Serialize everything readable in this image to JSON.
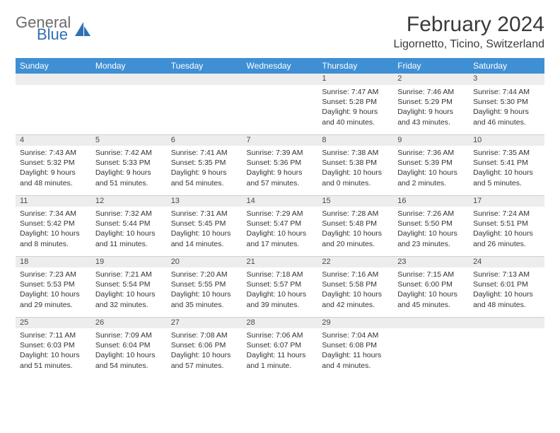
{
  "brand": {
    "line1": "General",
    "line2": "Blue"
  },
  "title": "February 2024",
  "location": "Ligornetto, Ticino, Switzerland",
  "colors": {
    "header_bg": "#3f8fd4",
    "header_text": "#ffffff",
    "daynum_bg": "#ededed",
    "logo_blue": "#2f6fb5",
    "logo_gray": "#6a6a6a",
    "text": "#333333"
  },
  "weekdays": [
    "Sunday",
    "Monday",
    "Tuesday",
    "Wednesday",
    "Thursday",
    "Friday",
    "Saturday"
  ],
  "weeks": [
    [
      null,
      null,
      null,
      null,
      {
        "d": "1",
        "sr": "Sunrise: 7:47 AM",
        "ss": "Sunset: 5:28 PM",
        "dl": "Daylight: 9 hours and 40 minutes."
      },
      {
        "d": "2",
        "sr": "Sunrise: 7:46 AM",
        "ss": "Sunset: 5:29 PM",
        "dl": "Daylight: 9 hours and 43 minutes."
      },
      {
        "d": "3",
        "sr": "Sunrise: 7:44 AM",
        "ss": "Sunset: 5:30 PM",
        "dl": "Daylight: 9 hours and 46 minutes."
      }
    ],
    [
      {
        "d": "4",
        "sr": "Sunrise: 7:43 AM",
        "ss": "Sunset: 5:32 PM",
        "dl": "Daylight: 9 hours and 48 minutes."
      },
      {
        "d": "5",
        "sr": "Sunrise: 7:42 AM",
        "ss": "Sunset: 5:33 PM",
        "dl": "Daylight: 9 hours and 51 minutes."
      },
      {
        "d": "6",
        "sr": "Sunrise: 7:41 AM",
        "ss": "Sunset: 5:35 PM",
        "dl": "Daylight: 9 hours and 54 minutes."
      },
      {
        "d": "7",
        "sr": "Sunrise: 7:39 AM",
        "ss": "Sunset: 5:36 PM",
        "dl": "Daylight: 9 hours and 57 minutes."
      },
      {
        "d": "8",
        "sr": "Sunrise: 7:38 AM",
        "ss": "Sunset: 5:38 PM",
        "dl": "Daylight: 10 hours and 0 minutes."
      },
      {
        "d": "9",
        "sr": "Sunrise: 7:36 AM",
        "ss": "Sunset: 5:39 PM",
        "dl": "Daylight: 10 hours and 2 minutes."
      },
      {
        "d": "10",
        "sr": "Sunrise: 7:35 AM",
        "ss": "Sunset: 5:41 PM",
        "dl": "Daylight: 10 hours and 5 minutes."
      }
    ],
    [
      {
        "d": "11",
        "sr": "Sunrise: 7:34 AM",
        "ss": "Sunset: 5:42 PM",
        "dl": "Daylight: 10 hours and 8 minutes."
      },
      {
        "d": "12",
        "sr": "Sunrise: 7:32 AM",
        "ss": "Sunset: 5:44 PM",
        "dl": "Daylight: 10 hours and 11 minutes."
      },
      {
        "d": "13",
        "sr": "Sunrise: 7:31 AM",
        "ss": "Sunset: 5:45 PM",
        "dl": "Daylight: 10 hours and 14 minutes."
      },
      {
        "d": "14",
        "sr": "Sunrise: 7:29 AM",
        "ss": "Sunset: 5:47 PM",
        "dl": "Daylight: 10 hours and 17 minutes."
      },
      {
        "d": "15",
        "sr": "Sunrise: 7:28 AM",
        "ss": "Sunset: 5:48 PM",
        "dl": "Daylight: 10 hours and 20 minutes."
      },
      {
        "d": "16",
        "sr": "Sunrise: 7:26 AM",
        "ss": "Sunset: 5:50 PM",
        "dl": "Daylight: 10 hours and 23 minutes."
      },
      {
        "d": "17",
        "sr": "Sunrise: 7:24 AM",
        "ss": "Sunset: 5:51 PM",
        "dl": "Daylight: 10 hours and 26 minutes."
      }
    ],
    [
      {
        "d": "18",
        "sr": "Sunrise: 7:23 AM",
        "ss": "Sunset: 5:53 PM",
        "dl": "Daylight: 10 hours and 29 minutes."
      },
      {
        "d": "19",
        "sr": "Sunrise: 7:21 AM",
        "ss": "Sunset: 5:54 PM",
        "dl": "Daylight: 10 hours and 32 minutes."
      },
      {
        "d": "20",
        "sr": "Sunrise: 7:20 AM",
        "ss": "Sunset: 5:55 PM",
        "dl": "Daylight: 10 hours and 35 minutes."
      },
      {
        "d": "21",
        "sr": "Sunrise: 7:18 AM",
        "ss": "Sunset: 5:57 PM",
        "dl": "Daylight: 10 hours and 39 minutes."
      },
      {
        "d": "22",
        "sr": "Sunrise: 7:16 AM",
        "ss": "Sunset: 5:58 PM",
        "dl": "Daylight: 10 hours and 42 minutes."
      },
      {
        "d": "23",
        "sr": "Sunrise: 7:15 AM",
        "ss": "Sunset: 6:00 PM",
        "dl": "Daylight: 10 hours and 45 minutes."
      },
      {
        "d": "24",
        "sr": "Sunrise: 7:13 AM",
        "ss": "Sunset: 6:01 PM",
        "dl": "Daylight: 10 hours and 48 minutes."
      }
    ],
    [
      {
        "d": "25",
        "sr": "Sunrise: 7:11 AM",
        "ss": "Sunset: 6:03 PM",
        "dl": "Daylight: 10 hours and 51 minutes."
      },
      {
        "d": "26",
        "sr": "Sunrise: 7:09 AM",
        "ss": "Sunset: 6:04 PM",
        "dl": "Daylight: 10 hours and 54 minutes."
      },
      {
        "d": "27",
        "sr": "Sunrise: 7:08 AM",
        "ss": "Sunset: 6:06 PM",
        "dl": "Daylight: 10 hours and 57 minutes."
      },
      {
        "d": "28",
        "sr": "Sunrise: 7:06 AM",
        "ss": "Sunset: 6:07 PM",
        "dl": "Daylight: 11 hours and 1 minute."
      },
      {
        "d": "29",
        "sr": "Sunrise: 7:04 AM",
        "ss": "Sunset: 6:08 PM",
        "dl": "Daylight: 11 hours and 4 minutes."
      },
      null,
      null
    ]
  ]
}
